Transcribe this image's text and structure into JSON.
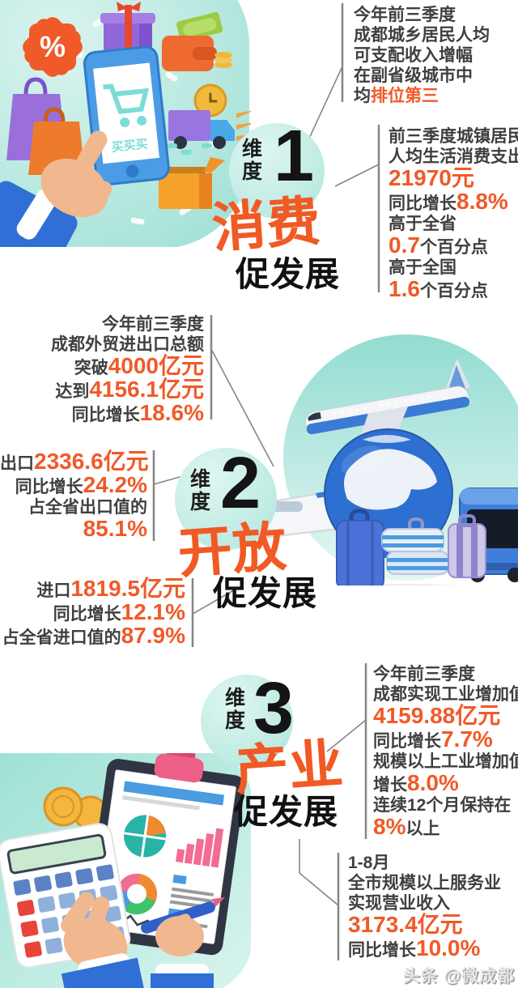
{
  "palette": {
    "accent_orange": "#f05a28",
    "brush_orange": "#f15a24",
    "body_text": "#3f3f3f",
    "headline_black": "#141414",
    "teal_blob": "#aee6dc",
    "callout_line": "#858585",
    "phone_blue": "#4b9ce4",
    "screen_teal": "#7ddcd6"
  },
  "illustrations": {
    "shopping": {
      "phone_text": "买买买",
      "discount_symbol": "%"
    }
  },
  "sections": [
    {
      "badge": {
        "dim": "维度",
        "num": "1",
        "theme": "消费",
        "slogan": "促发展"
      },
      "blocks": {
        "income": {
          "lines": [
            {
              "t": "今年前三季度"
            },
            {
              "t": "成都城乡居民人均"
            },
            {
              "t": "可支配收入增幅"
            },
            {
              "t": "在副省级城市中"
            },
            {
              "t": "均",
              "acc": "排位第三"
            }
          ]
        },
        "spending": {
          "lines": [
            {
              "t": "前三季度城镇居民"
            },
            {
              "t": "人均生活消费支出"
            },
            {
              "num": "21970元"
            },
            {
              "t": "同比增长",
              "num": "8.8%"
            },
            {
              "t": "高于全省"
            },
            {
              "num": "0.7",
              "post": "个百分点"
            },
            {
              "t": "高于全国"
            },
            {
              "num": "1.6",
              "post": "个百分点"
            }
          ]
        }
      }
    },
    {
      "badge": {
        "dim": "维度",
        "num": "2",
        "theme": "开放",
        "slogan": "促发展"
      },
      "blocks": {
        "trade": {
          "lines": [
            {
              "t": "今年前三季度"
            },
            {
              "t": "成都外贸进出口总额"
            },
            {
              "t": "突破",
              "num": "4000亿元"
            },
            {
              "t": "达到",
              "num": "4156.1亿元"
            },
            {
              "t": "同比增长",
              "num": "18.6%"
            }
          ]
        },
        "exports": {
          "lines": [
            {
              "t": "出口",
              "num": "2336.6亿元"
            },
            {
              "t": "同比增长",
              "num": "24.2%"
            },
            {
              "t": "占全省出口值的"
            },
            {
              "num": "85.1%"
            }
          ]
        },
        "imports": {
          "lines": [
            {
              "t": "进口",
              "num": "1819.5亿元"
            },
            {
              "t": "同比增长",
              "num": "12.1%"
            },
            {
              "t": "占全省进口值的",
              "num": "87.9%"
            }
          ]
        }
      }
    },
    {
      "badge": {
        "dim": "维度",
        "num": "3",
        "theme": "产业",
        "slogan": "促发展"
      },
      "blocks": {
        "industry": {
          "lines": [
            {
              "t": "今年前三季度"
            },
            {
              "t": "成都实现工业增加值"
            },
            {
              "num": "4159.88亿元"
            },
            {
              "t": "同比增长",
              "num": "7.7%"
            },
            {
              "t": "规模以上工业增加值"
            },
            {
              "t": "增长",
              "num": "8.0%"
            },
            {
              "t": "连续12个月保持在"
            },
            {
              "num": "8%",
              "post": "以上"
            }
          ]
        },
        "services": {
          "lines": [
            {
              "t": "1-8月"
            },
            {
              "t": "全市规模以上服务业"
            },
            {
              "t": "实现营业收入"
            },
            {
              "num": "3173.4亿元"
            },
            {
              "t": "同比增长",
              "num": "10.0%"
            }
          ]
        }
      }
    }
  ],
  "credit": "头条 @微成都"
}
